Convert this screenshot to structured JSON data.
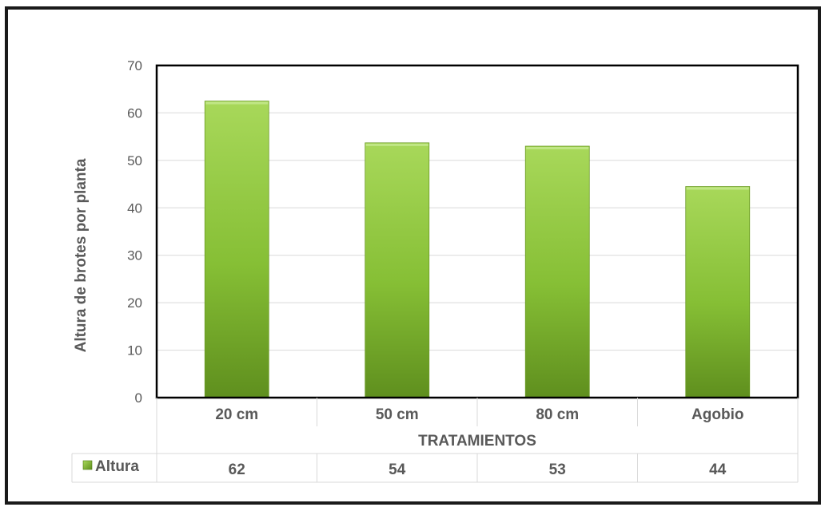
{
  "colors": {
    "bar_light": "#a8d85a",
    "bar_dark": "#5f8f1e",
    "grid": "#d9d9d9",
    "text": "#595959"
  },
  "chart_data": {
    "type": "bar",
    "categories": [
      "20 cm",
      "50 cm",
      "80 cm",
      "Agobio"
    ],
    "series": [
      {
        "name": "Altura",
        "values": [
          62.5,
          53.7,
          53.0,
          44.5
        ]
      }
    ],
    "table_values": [
      "62",
      "54",
      "53",
      "44"
    ],
    "xlabel": "TRATAMIENTOS",
    "ylabel": "Altura de brotes por planta",
    "ylim": [
      0,
      70
    ],
    "yticks": [
      "0",
      "10",
      "20",
      "30",
      "40",
      "50",
      "60",
      "70"
    ],
    "grid": true,
    "legend": "data-table-left"
  }
}
